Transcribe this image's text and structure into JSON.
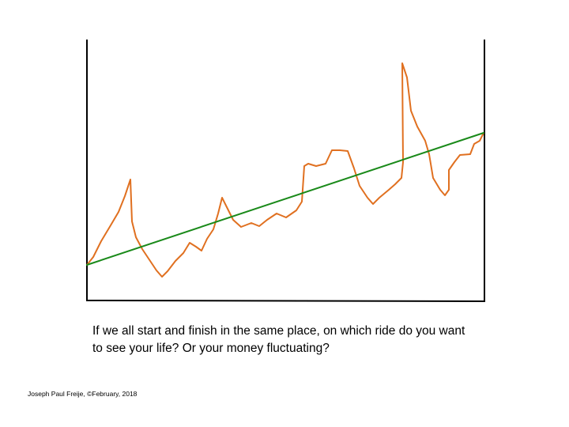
{
  "chart_data": {
    "type": "line",
    "caption": "If we all start and finish in the same place, on which ride do you want to see your life?  Or your money fluctuating?",
    "credit": "Joseph Paul Freije, ©February, 2018",
    "xlim": [
      0,
      503
    ],
    "ylim": [
      0,
      330
    ],
    "series": [
      {
        "color": "#e07020",
        "x": [
          0,
          8,
          18,
          30,
          40,
          48,
          55,
          57,
          62,
          70,
          80,
          88,
          95,
          102,
          112,
          122,
          130,
          138,
          145,
          152,
          160,
          166,
          171,
          177,
          185,
          195,
          208,
          218,
          228,
          240,
          252,
          265,
          272,
          275,
          280,
          290,
          302,
          310,
          320,
          330,
          338,
          345,
          355,
          362,
          370,
          382,
          390,
          398,
          400,
          399,
          405,
          410,
          418,
          428,
          433,
          438,
          447,
          453,
          458,
          458,
          465,
          472,
          485,
          490,
          497,
          502
        ],
        "values": [
          45,
          55,
          75,
          95,
          112,
          132,
          153,
          100,
          80,
          65,
          50,
          38,
          30,
          37,
          50,
          60,
          73,
          68,
          63,
          78,
          90,
          110,
          130,
          118,
          102,
          93,
          98,
          94,
          102,
          110,
          105,
          114,
          125,
          170,
          173,
          170,
          173,
          190,
          190,
          189,
          167,
          145,
          130,
          122,
          130,
          140,
          147,
          155,
          175,
          300,
          282,
          240,
          220,
          202,
          185,
          155,
          140,
          133,
          140,
          165,
          175,
          184,
          185,
          198,
          202,
          212
        ]
      },
      {
        "color": "#1a8a1a",
        "x": [
          0,
          502
        ],
        "values": [
          45,
          212
        ]
      }
    ]
  }
}
